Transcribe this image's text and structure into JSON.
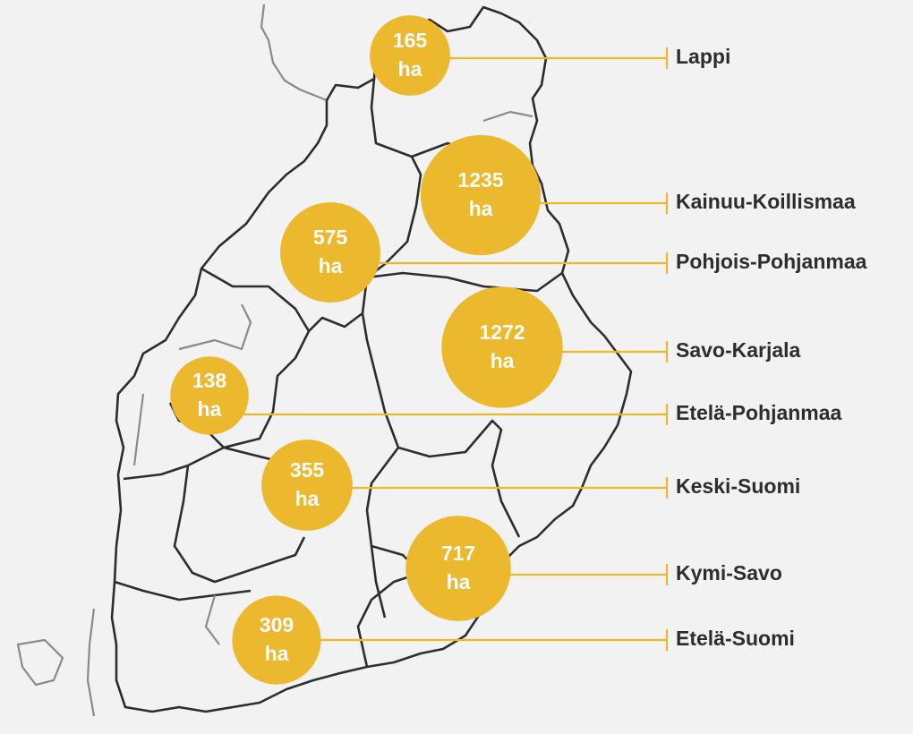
{
  "map": {
    "unit": "ha",
    "regions": [
      {
        "name": "Lappi",
        "value": 165
      },
      {
        "name": "Kainuu-Koillismaa",
        "value": 1235
      },
      {
        "name": "Pohjois-Pohjanmaa",
        "value": 575
      },
      {
        "name": "Savo-Karjala",
        "value": 1272
      },
      {
        "name": "Etelä-Pohjanmaa",
        "value": 138
      },
      {
        "name": "Keski-Suomi",
        "value": 355
      },
      {
        "name": "Kymi-Savo",
        "value": 717
      },
      {
        "name": "Etelä-Suomi",
        "value": 309
      }
    ]
  }
}
